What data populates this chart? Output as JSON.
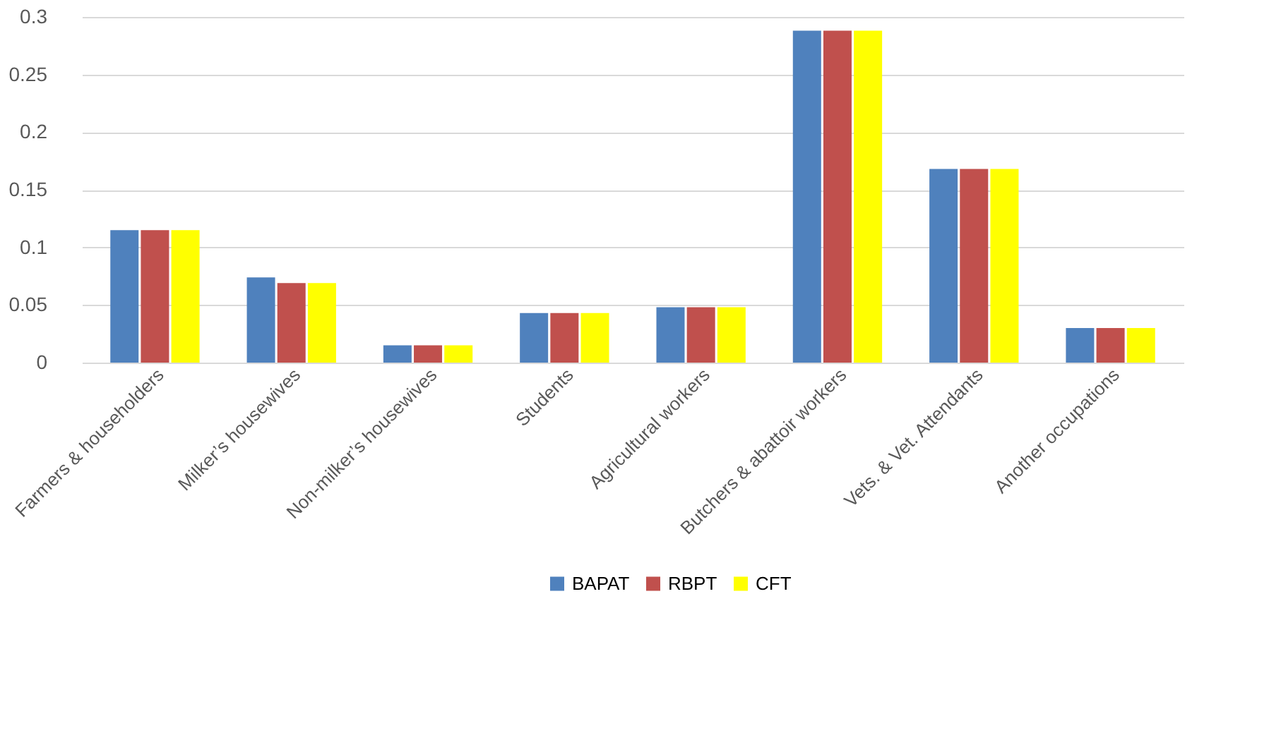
{
  "chart_data": {
    "type": "bar",
    "categories": [
      "Farmers & householders",
      "Milker’s housewives",
      "Non-milker’s housewives",
      "Students",
      "Agricultural workers",
      "Butchers & abattoir workers",
      "Vets. & Vet. Attendants",
      "Another occupations"
    ],
    "series": [
      {
        "name": "BAPAT",
        "color": "#4f81bd",
        "values": [
          0.115,
          0.074,
          0.015,
          0.043,
          0.048,
          0.288,
          0.168,
          0.03
        ]
      },
      {
        "name": "RBPT",
        "color": "#c0504d",
        "values": [
          0.115,
          0.069,
          0.015,
          0.043,
          0.048,
          0.288,
          0.168,
          0.03
        ]
      },
      {
        "name": "CFT",
        "color": "#ffff00",
        "values": [
          0.115,
          0.069,
          0.015,
          0.043,
          0.048,
          0.288,
          0.168,
          0.03
        ]
      }
    ],
    "ylim": [
      0,
      0.3
    ],
    "yticks": [
      0,
      0.05,
      0.1,
      0.15,
      0.2,
      0.25,
      0.3
    ],
    "grid": "y",
    "legend": "bottom"
  }
}
